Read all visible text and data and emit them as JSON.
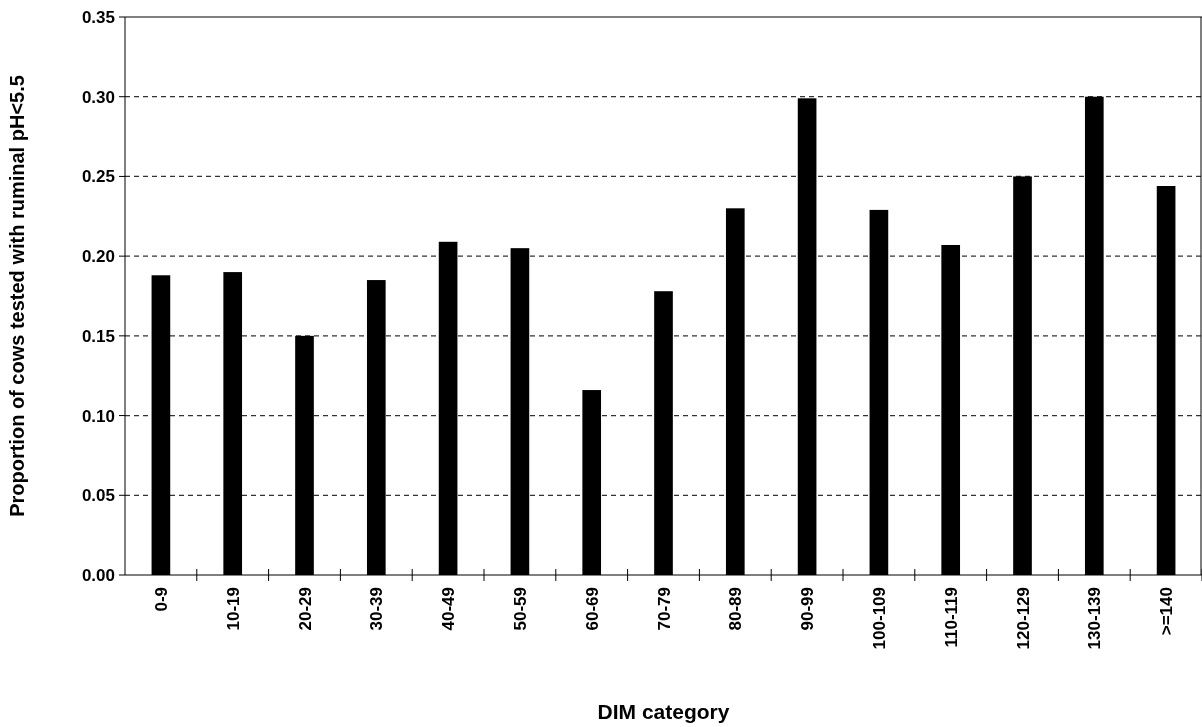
{
  "chart_data": {
    "type": "bar",
    "xlabel": "DIM category",
    "ylabel": "Proportion of cows tested with ruminal pH<5.5",
    "categories": [
      "0-9",
      "10-19",
      "20-29",
      "30-39",
      "40-49",
      "50-59",
      "60-69",
      "70-79",
      "80-89",
      "90-99",
      "100-109",
      "110-119",
      "120-129",
      "130-139",
      ">=140"
    ],
    "values": [
      0.188,
      0.19,
      0.15,
      0.185,
      0.209,
      0.205,
      0.116,
      0.178,
      0.23,
      0.299,
      0.229,
      0.207,
      0.25,
      0.3,
      0.244
    ],
    "color": "#000000",
    "ylim": [
      0,
      0.35
    ],
    "yticks": [
      {
        "value": 0,
        "label": "0.00"
      },
      {
        "value": 0.05,
        "label": "0.05"
      },
      {
        "value": 0.1,
        "label": "0.10"
      },
      {
        "value": 0.15,
        "label": "0.15"
      },
      {
        "value": 0.2,
        "label": "0.20"
      },
      {
        "value": 0.25,
        "label": "0.25"
      },
      {
        "value": 0.3,
        "label": "0.30"
      },
      {
        "value": 0.35,
        "label": "0.35"
      }
    ],
    "grid": "y"
  }
}
